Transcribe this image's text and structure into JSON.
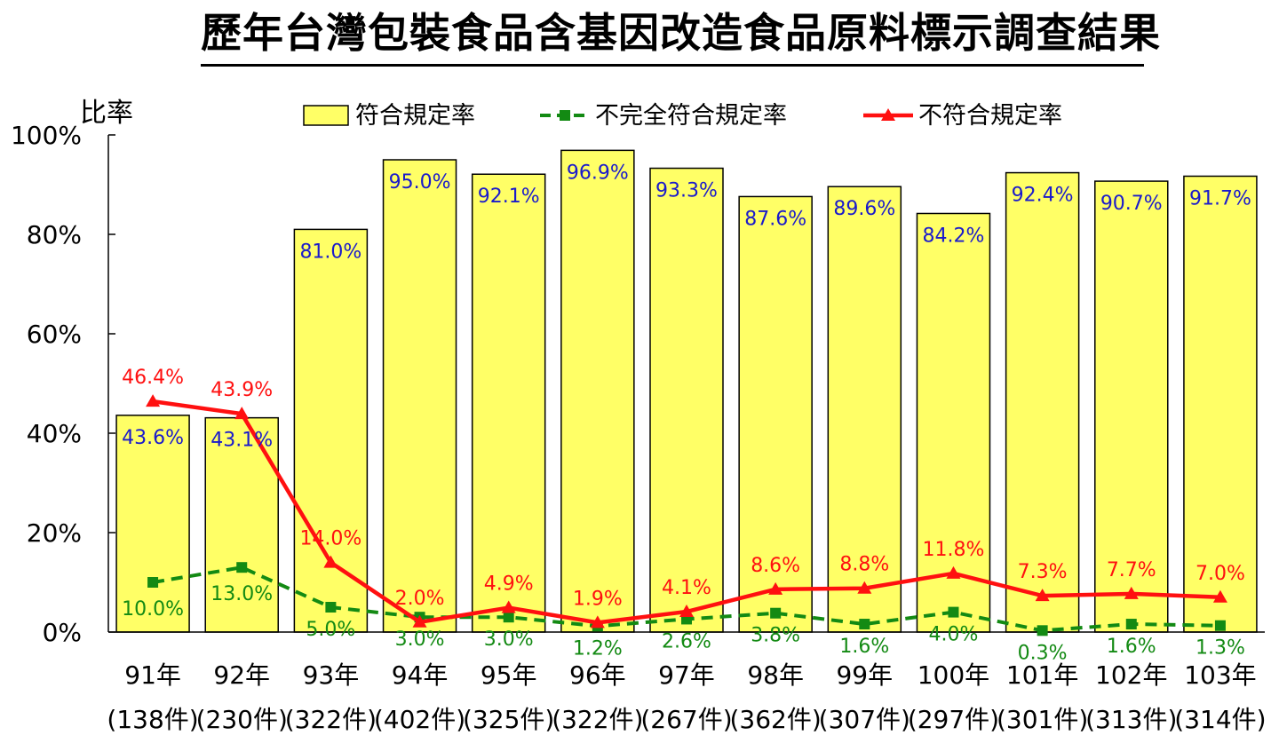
{
  "title": "歷年台灣包裝食品含基因改造食品原料標示調查結果",
  "colors": {
    "bar_fill": "#FFFF66",
    "bar_stroke": "#000000",
    "compliant_label": "#1a1acc",
    "partial": "#138a13",
    "noncompliant": "#ff1010"
  },
  "chart_data": {
    "type": "bar",
    "title": "歷年台灣包裝食品含基因改造食品原料標示調查結果",
    "xlabel": "",
    "ylabel": "比率",
    "ylim": [
      0,
      100
    ],
    "yticks": [
      "0%",
      "20%",
      "40%",
      "60%",
      "80%",
      "100%"
    ],
    "grid": false,
    "legend_position": "top",
    "categories": [
      "91年",
      "92年",
      "93年",
      "94年",
      "95年",
      "96年",
      "97年",
      "98年",
      "99年",
      "100年",
      "101年",
      "102年",
      "103年"
    ],
    "case_counts": [
      "(138件)",
      "(230件)",
      "(322件)",
      "(402件)",
      "(325件)",
      "(322件)",
      "(267件)",
      "(362件)",
      "(307件)",
      "(297件)",
      "(301件)",
      "(313件)",
      "(314件)"
    ],
    "series": [
      {
        "name": "符合規定率",
        "type": "bar",
        "values": [
          43.6,
          43.1,
          81.0,
          95.0,
          92.1,
          96.9,
          93.3,
          87.6,
          89.6,
          84.2,
          92.4,
          90.7,
          91.7
        ],
        "labels": [
          "43.6%",
          "43.1%",
          "81.0%",
          "95.0%",
          "92.1%",
          "96.9%",
          "93.3%",
          "87.6%",
          "89.6%",
          "84.2%",
          "92.4%",
          "90.7%",
          "91.7%"
        ]
      },
      {
        "name": "不完全符合規定率",
        "type": "line-dashed",
        "values": [
          10.0,
          13.0,
          5.0,
          3.0,
          3.0,
          1.2,
          2.6,
          3.8,
          1.6,
          4.0,
          0.3,
          1.6,
          1.3
        ],
        "labels": [
          "10.0%",
          "13.0%",
          "5.0%",
          "3.0%",
          "3.0%",
          "1.2%",
          "2.6%",
          "3.8%",
          "1.6%",
          "4.0%",
          "0.3%",
          "1.6%",
          "1.3%"
        ]
      },
      {
        "name": "不符合規定率",
        "type": "line",
        "values": [
          46.4,
          43.9,
          14.0,
          2.0,
          4.9,
          1.9,
          4.1,
          8.6,
          8.8,
          11.8,
          7.3,
          7.7,
          7.0
        ],
        "labels": [
          "46.4%",
          "43.9%",
          "14.0%",
          "2.0%",
          "4.9%",
          "1.9%",
          "4.1%",
          "8.6%",
          "8.8%",
          "11.8%",
          "7.3%",
          "7.7%",
          "7.0%"
        ]
      }
    ]
  }
}
